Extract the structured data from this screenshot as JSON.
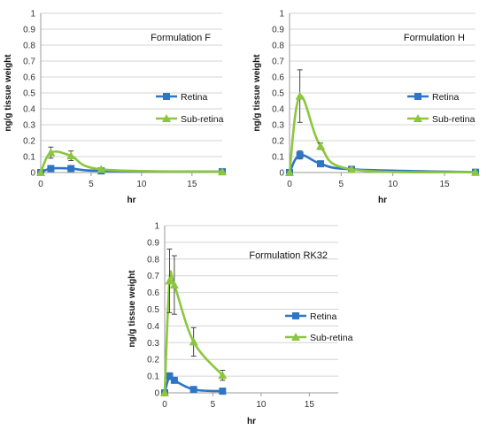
{
  "colors": {
    "retina": "#2e75c6",
    "sub_retina": "#8cc63e",
    "grid": "#d4d4d4",
    "axis": "#9a9a9a",
    "error_bar": "#333333"
  },
  "chart_data": [
    {
      "type": "line",
      "title": "Formulation F",
      "xlabel": "hr",
      "ylabel": "ng/g tissue weight",
      "xlim": [
        0,
        18
      ],
      "ylim": [
        0,
        1
      ],
      "xticks": [
        "0",
        "5",
        "10",
        "15"
      ],
      "yticks": [
        "0",
        "0.1",
        "0.2",
        "0.3",
        "0.4",
        "0.5",
        "0.6",
        "0.7",
        "0.8",
        "0.9",
        "1"
      ],
      "grid": "horizontal",
      "legend": "right",
      "series": [
        {
          "name": "Retina",
          "marker": "square",
          "x": [
            0,
            1,
            3,
            6,
            18
          ],
          "y": [
            0,
            0.025,
            0.025,
            0.01,
            0.005
          ],
          "err": [
            0,
            0,
            0,
            0,
            0
          ]
        },
        {
          "name": "Sub-retina",
          "marker": "triangle",
          "x": [
            0,
            1,
            3,
            6,
            18
          ],
          "y": [
            0,
            0.125,
            0.105,
            0.02,
            0.005
          ],
          "err": [
            0,
            0.035,
            0.03,
            0,
            0
          ]
        }
      ]
    },
    {
      "type": "line",
      "title": "Formulation H",
      "xlabel": "hr",
      "ylabel": "ng/g tissue weight",
      "xlim": [
        0,
        18
      ],
      "ylim": [
        0,
        1
      ],
      "xticks": [
        "0",
        "5",
        "10",
        "15"
      ],
      "yticks": [
        "0",
        "0.1",
        "0.2",
        "0.3",
        "0.4",
        "0.5",
        "0.6",
        "0.7",
        "0.8",
        "0.9",
        "1"
      ],
      "grid": "horizontal",
      "legend": "right",
      "series": [
        {
          "name": "Retina",
          "marker": "square",
          "x": [
            0,
            1,
            3,
            6,
            18
          ],
          "y": [
            0,
            0.11,
            0.055,
            0.02,
            0.002
          ],
          "err": [
            0,
            0.025,
            0,
            0,
            0
          ]
        },
        {
          "name": "Sub-retina",
          "marker": "triangle",
          "x": [
            0,
            1,
            3,
            6,
            18
          ],
          "y": [
            0,
            0.48,
            0.165,
            0.02,
            0.002
          ],
          "err": [
            0,
            0.165,
            0.02,
            0,
            0
          ]
        }
      ]
    },
    {
      "type": "line",
      "title": "Formulation RK32",
      "xlabel": "hr",
      "ylabel": "ng/g tissue weight",
      "xlim": [
        0,
        18
      ],
      "ylim": [
        0,
        1
      ],
      "xticks": [
        "0",
        "5",
        "10",
        "15"
      ],
      "yticks": [
        "0",
        "0.1",
        "0.2",
        "0.3",
        "0.4",
        "0.5",
        "0.6",
        "0.7",
        "0.8",
        "0.9",
        "1"
      ],
      "grid": "horizontal",
      "legend": "right",
      "series": [
        {
          "name": "Retina",
          "marker": "square",
          "x": [
            0,
            0.5,
            1,
            3,
            6
          ],
          "y": [
            0,
            0.1,
            0.075,
            0.02,
            0.01
          ],
          "err": [
            0,
            0.02,
            0,
            0,
            0
          ]
        },
        {
          "name": "Sub-retina",
          "marker": "triangle",
          "x": [
            0,
            0.5,
            1,
            3,
            6
          ],
          "y": [
            0,
            0.67,
            0.645,
            0.305,
            0.105
          ],
          "err": [
            0,
            0.19,
            0.175,
            0.085,
            0.03
          ]
        }
      ]
    }
  ]
}
